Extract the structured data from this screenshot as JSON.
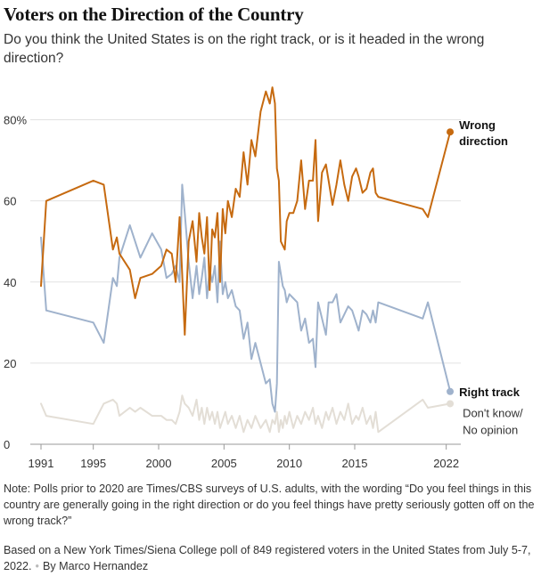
{
  "header": {
    "title": "Voters on the Direction of the Country",
    "subtitle": "Do you think the United States is on the right track, or is it headed in the wrong direction?"
  },
  "footer": {
    "note": "Note: Polls prior to 2020 are Times/CBS surveys of U.S. adults, with the wording “Do you feel things in this country are generally going in the right direction or do you feel things have pretty seriously gotten off on the wrong track?”",
    "source": "Based on a New York Times/Siena College poll of 849 registered voters in the United States from July 5-7, 2022.",
    "byline": "By Marco Hernandez"
  },
  "chart_data": {
    "type": "line",
    "xlim": [
      1991,
      2022.5
    ],
    "ylim": [
      0,
      90
    ],
    "x_ticks": [
      1991,
      1995,
      2000,
      2005,
      2010,
      2015,
      2022
    ],
    "x_tick_labels": [
      "1991",
      "1995",
      "2000",
      "2005",
      "2010",
      "2015",
      "2022"
    ],
    "y_ticks": [
      0,
      20,
      40,
      60,
      80
    ],
    "y_tick_labels": [
      "0",
      "20",
      "40",
      "60",
      "80%"
    ],
    "series": [
      {
        "name": "Wrong direction",
        "label_lines": [
          "Wrong",
          "direction"
        ],
        "color": "#c66a10",
        "end_marker": true,
        "x": [
          1991.0,
          1991.4,
          1995.0,
          1995.8,
          1996.5,
          1996.8,
          1997.0,
          1997.8,
          1998.2,
          1998.6,
          1999.5,
          2000.2,
          2000.6,
          2001.0,
          2001.3,
          2001.6,
          2001.8,
          2002.0,
          2002.3,
          2002.6,
          2002.9,
          2003.1,
          2003.3,
          2003.5,
          2003.7,
          2003.9,
          2004.1,
          2004.3,
          2004.5,
          2004.7,
          2004.9,
          2005.1,
          2005.3,
          2005.6,
          2005.9,
          2006.2,
          2006.5,
          2006.8,
          2007.1,
          2007.4,
          2007.8,
          2008.2,
          2008.5,
          2008.7,
          2008.9,
          2009.05,
          2009.2,
          2009.35,
          2009.5,
          2009.65,
          2009.8,
          2010.0,
          2010.3,
          2010.6,
          2010.9,
          2011.2,
          2011.5,
          2011.8,
          2012.0,
          2012.2,
          2012.5,
          2012.8,
          2013.0,
          2013.3,
          2013.6,
          2013.9,
          2014.2,
          2014.5,
          2014.8,
          2015.1,
          2015.3,
          2015.6,
          2015.9,
          2016.2,
          2016.4,
          2016.6,
          2016.8,
          2020.2,
          2020.6,
          2022.3
        ],
        "y": [
          39,
          60,
          65,
          64,
          48,
          51,
          47,
          43,
          36,
          41,
          42,
          44,
          48,
          47,
          40,
          56,
          42,
          27,
          50,
          55,
          45,
          57,
          51,
          47,
          56,
          38,
          53,
          51,
          57,
          40,
          58,
          52,
          60,
          56,
          63,
          61,
          72,
          64,
          75,
          71,
          82,
          87,
          84,
          88,
          84,
          68,
          65,
          50,
          49,
          48,
          55,
          57,
          57,
          60,
          70,
          58,
          65,
          65,
          75,
          55,
          67,
          69,
          65,
          59,
          64,
          70,
          64,
          60,
          66,
          68,
          66,
          62,
          63,
          67,
          68,
          62,
          61,
          58,
          56,
          77
        ]
      },
      {
        "name": "Right track",
        "label_lines": [
          "Right track"
        ],
        "color": "#9fb2cc",
        "end_marker": true,
        "x": [
          1991.0,
          1991.4,
          1995.0,
          1995.8,
          1996.5,
          1996.8,
          1997.0,
          1997.8,
          1998.2,
          1998.6,
          1999.5,
          2000.2,
          2000.6,
          2001.0,
          2001.3,
          2001.6,
          2001.8,
          2002.0,
          2002.3,
          2002.6,
          2002.9,
          2003.1,
          2003.3,
          2003.5,
          2003.7,
          2003.9,
          2004.1,
          2004.3,
          2004.5,
          2004.7,
          2004.9,
          2005.1,
          2005.3,
          2005.6,
          2005.9,
          2006.2,
          2006.5,
          2006.8,
          2007.1,
          2007.4,
          2007.8,
          2008.2,
          2008.5,
          2008.7,
          2008.9,
          2009.05,
          2009.2,
          2009.35,
          2009.5,
          2009.65,
          2009.8,
          2010.0,
          2010.3,
          2010.6,
          2010.9,
          2011.2,
          2011.5,
          2011.8,
          2012.0,
          2012.2,
          2012.5,
          2012.8,
          2013.0,
          2013.3,
          2013.6,
          2013.9,
          2014.2,
          2014.5,
          2014.8,
          2015.1,
          2015.3,
          2015.6,
          2015.9,
          2016.2,
          2016.4,
          2016.6,
          2016.8,
          2020.2,
          2020.6,
          2022.3
        ],
        "y": [
          51,
          33,
          30,
          25,
          41,
          39,
          46,
          54,
          50,
          46,
          52,
          48,
          41,
          42,
          44,
          40,
          64,
          57,
          45,
          36,
          44,
          37,
          41,
          46,
          36,
          43,
          40,
          44,
          35,
          50,
          37,
          40,
          36,
          38,
          34,
          33,
          26,
          30,
          21,
          25,
          20,
          15,
          16,
          10,
          8,
          15,
          45,
          42,
          39,
          38,
          35,
          37,
          36,
          35,
          28,
          31,
          25,
          26,
          19,
          35,
          31,
          27,
          35,
          35,
          37,
          30,
          32,
          34,
          33,
          30,
          28,
          33,
          32,
          30,
          33,
          30,
          35,
          31,
          35,
          13
        ]
      },
      {
        "name": "Don't know/ No opinion",
        "label_lines": [
          "Don't know/",
          "No opinion"
        ],
        "color": "#e3ded6",
        "end_marker": true,
        "x": [
          1991.0,
          1991.4,
          1995.0,
          1995.8,
          1996.5,
          1996.8,
          1997.0,
          1997.8,
          1998.2,
          1998.6,
          1999.5,
          2000.2,
          2000.6,
          2001.0,
          2001.3,
          2001.6,
          2001.8,
          2002.0,
          2002.3,
          2002.6,
          2002.9,
          2003.1,
          2003.3,
          2003.5,
          2003.7,
          2003.9,
          2004.1,
          2004.3,
          2004.5,
          2004.7,
          2004.9,
          2005.1,
          2005.3,
          2005.6,
          2005.9,
          2006.2,
          2006.5,
          2006.8,
          2007.1,
          2007.4,
          2007.8,
          2008.2,
          2008.5,
          2008.7,
          2008.9,
          2009.05,
          2009.2,
          2009.35,
          2009.5,
          2009.65,
          2009.8,
          2010.0,
          2010.3,
          2010.6,
          2010.9,
          2011.2,
          2011.5,
          2011.8,
          2012.0,
          2012.2,
          2012.5,
          2012.8,
          2013.0,
          2013.3,
          2013.6,
          2013.9,
          2014.2,
          2014.5,
          2014.8,
          2015.1,
          2015.3,
          2015.6,
          2015.9,
          2016.2,
          2016.4,
          2016.6,
          2016.8,
          2020.2,
          2020.6,
          2022.3
        ],
        "y": [
          10,
          7,
          5,
          10,
          11,
          10,
          7,
          9,
          8,
          9,
          7,
          7,
          6,
          6,
          5,
          8,
          12,
          10,
          9,
          7,
          11,
          6,
          9,
          5,
          9,
          6,
          8,
          5,
          8,
          4,
          6,
          8,
          5,
          7,
          4,
          7,
          3,
          6,
          4,
          7,
          4,
          6,
          3,
          6,
          5,
          8,
          3,
          6,
          4,
          7,
          5,
          8,
          4,
          7,
          5,
          8,
          6,
          9,
          5,
          7,
          4,
          8,
          6,
          9,
          5,
          8,
          6,
          10,
          5,
          7,
          6,
          9,
          5,
          7,
          4,
          8,
          3,
          11,
          9,
          10
        ]
      }
    ]
  }
}
